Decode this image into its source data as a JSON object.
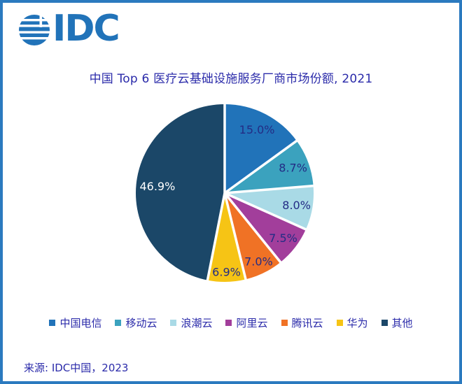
{
  "frame": {
    "border_color": "#2B7ABF",
    "background": "#FFFFFF"
  },
  "logo": {
    "text": "IDC",
    "color": "#2173B9",
    "icon": "idc-globe-icon"
  },
  "title": {
    "text": "中国 Top 6 医疗云基础设施服务厂商市场份额, 2021",
    "color": "#2B2BAA"
  },
  "chart_data": {
    "type": "pie",
    "title": "中国 Top 6 医疗云基础设施服务厂商市场份额, 2021",
    "unit": "percent",
    "start_angle_deg": 0,
    "direction": "clockwise",
    "separator_color": "#FFFFFF",
    "legend_position": "bottom",
    "slices": [
      {
        "key": "china-telecom",
        "label": "中国电信",
        "value": 15.0,
        "display": "15.0%",
        "color": "#2173B9",
        "label_color": "#232C85",
        "label_radius": 0.8,
        "label_size": 16
      },
      {
        "key": "mobile-cloud",
        "label": "移动云",
        "value": 8.7,
        "display": "8.7%",
        "color": "#3BA2BE",
        "label_color": "#232C85",
        "label_radius": 0.82,
        "label_size": 16
      },
      {
        "key": "inspur-cloud",
        "label": "浪潮云",
        "value": 8.0,
        "display": "8.0%",
        "color": "#A9DAE6",
        "label_color": "#232C85",
        "label_radius": 0.82,
        "label_size": 16
      },
      {
        "key": "alibaba-cloud",
        "label": "阿里云",
        "value": 7.5,
        "display": "7.5%",
        "color": "#A23E9B",
        "label_color": "#232C85",
        "label_radius": 0.83,
        "label_size": 16
      },
      {
        "key": "tencent-cloud",
        "label": "腾讯云",
        "value": 7.0,
        "display": "7.0%",
        "color": "#F07225",
        "label_color": "#232C85",
        "label_radius": 0.86,
        "label_size": 16
      },
      {
        "key": "huawei",
        "label": "华为",
        "value": 6.9,
        "display": "6.9%",
        "color": "#F6C415",
        "label_color": "#232C85",
        "label_radius": 0.89,
        "label_size": 16
      },
      {
        "key": "others",
        "label": "其他",
        "value": 46.9,
        "display": "46.9%",
        "color": "#1B4768",
        "label_color": "#FFFFFF",
        "label_radius": 0.76,
        "label_size": 17
      }
    ]
  },
  "footer": {
    "source": "来源: IDC中国，2023"
  }
}
